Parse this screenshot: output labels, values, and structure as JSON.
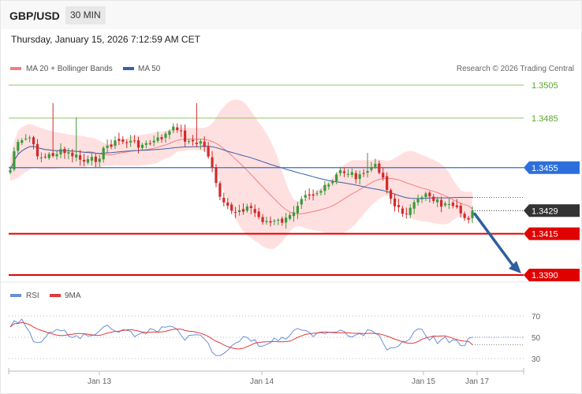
{
  "header": {
    "symbol": "GBP/USD",
    "timeframe": "30 MIN",
    "datetime": "Thursday, January 15, 2026 7:12:59 AM CET"
  },
  "copyright": "Research © 2026 Trading Central",
  "legend": {
    "bollinger": "MA 20 + Bollinger Bands",
    "ma50": "MA 50",
    "rsi": "RSI",
    "rsi_ma": "9MA"
  },
  "colors": {
    "bull": "#3a9a3a",
    "bear": "#d22a2a",
    "band_fill": "#ffd6d6",
    "ma20": "#f08080",
    "ma50": "#3a5fa8",
    "resistance_green": "#8cc46a",
    "pivot_blue": "#2c6fdc",
    "support_red": "#e00000",
    "last_price": "#333333",
    "arrow": "#2f5e9e",
    "rsi_line": "#6a8fd8",
    "rsi_ma_line": "#e03a3a"
  },
  "chart_data": [
    {
      "type": "candlestick",
      "title": "",
      "y_axis": {
        "ylim": [
          1.336,
          1.3525
        ]
      },
      "x_axis": {
        "labels": [
          "Jan 13",
          "Jan 14",
          "Jan 15",
          "Jan 17"
        ]
      },
      "levels": [
        {
          "value": 1.3505,
          "label": "1.3505",
          "role": "resistance-2",
          "style": "thin-green"
        },
        {
          "value": 1.3485,
          "label": "1.3485",
          "role": "resistance-1",
          "style": "thin-green"
        },
        {
          "value": 1.3455,
          "label": "1.3455",
          "role": "pivot",
          "style": "blue"
        },
        {
          "value": 1.3429,
          "label": "1.3429",
          "role": "last-price",
          "style": "dotted-dark"
        },
        {
          "value": 1.3415,
          "label": "1.3415",
          "role": "support-1",
          "style": "red"
        },
        {
          "value": 1.339,
          "label": "1.3390",
          "role": "support-2",
          "style": "red"
        }
      ],
      "ma20_end": 1.343,
      "ma50_end": 1.3437,
      "last_price": 1.3429,
      "forecast_arrow": {
        "from": 1.3427,
        "to": 1.339,
        "direction": "down"
      }
    },
    {
      "type": "line",
      "title": "",
      "series": [
        {
          "name": "RSI"
        },
        {
          "name": "9MA"
        }
      ],
      "y_axis": {
        "ticks": [
          70,
          50,
          30
        ],
        "ylim": [
          20,
          80
        ]
      },
      "rsi_end": 50,
      "ma_end": 43
    }
  ]
}
